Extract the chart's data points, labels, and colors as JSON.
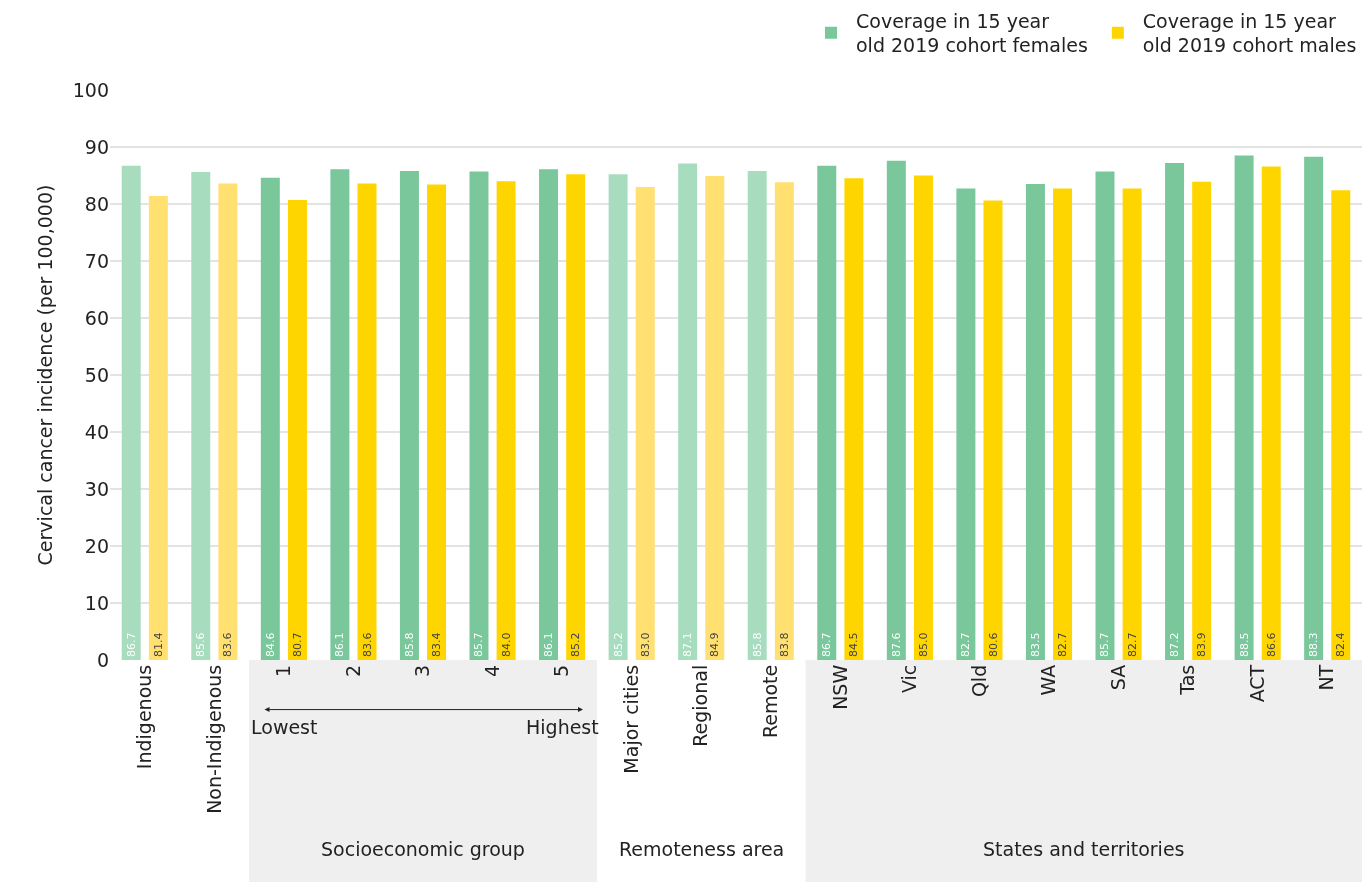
{
  "chart_data": {
    "type": "bar",
    "ylabel": "Cervical cancer incidence (per 100,000)",
    "categories": [
      "Indigenous",
      "Non-Indigenous",
      "1",
      "2",
      "3",
      "4",
      "5",
      "Major cities",
      "Regional",
      "Remote",
      "NSW",
      "Vic",
      "Qld",
      "WA",
      "SA",
      "Tas",
      "ACT",
      "NT"
    ],
    "series": [
      {
        "name": "Coverage in 15 year old 2019 cohort females",
        "color": "#7ac79b",
        "colors": [
          "#a8dcbf",
          "#a8dcbf",
          "#7ac79b",
          "#7ac79b",
          "#7ac79b",
          "#7ac79b",
          "#7ac79b",
          "#a8dcbf",
          "#a8dcbf",
          "#a8dcbf",
          "#7ac79b",
          "#7ac79b",
          "#7ac79b",
          "#7ac79b",
          "#7ac79b",
          "#7ac79b",
          "#7ac79b",
          "#7ac79b"
        ],
        "values": [
          86.7,
          85.6,
          84.6,
          86.1,
          85.8,
          85.7,
          86.1,
          85.2,
          87.1,
          85.8,
          86.7,
          87.6,
          82.7,
          83.5,
          85.7,
          87.2,
          88.5,
          88.3
        ]
      },
      {
        "name": "Coverage in 15 year old 2019 cohort males",
        "color": "#ffd500",
        "colors": [
          "#ffe070",
          "#ffe070",
          "#ffd500",
          "#ffd500",
          "#ffd500",
          "#ffd500",
          "#ffd500",
          "#ffe070",
          "#ffe070",
          "#ffe070",
          "#ffd500",
          "#ffd500",
          "#ffd500",
          "#ffd500",
          "#ffd500",
          "#ffd500",
          "#ffd500",
          "#ffd500"
        ],
        "values": [
          81.4,
          83.6,
          80.7,
          83.6,
          83.4,
          84.0,
          85.2,
          83.0,
          84.9,
          83.8,
          84.5,
          85.0,
          80.6,
          82.7,
          82.7,
          83.9,
          86.6,
          82.4
        ],
        "value_labels": [
          "81.4",
          "83.6",
          "80.7",
          "83.6",
          "83.4",
          "84.0",
          "85.2",
          "83.0",
          "84.9",
          "83.8",
          "84.5",
          "85.0",
          "80.6",
          "82.7",
          "82.7",
          "83.9",
          "86.6",
          "82.4"
        ]
      }
    ],
    "ylim": [
      0,
      100
    ],
    "yticks": [
      0,
      10,
      20,
      30,
      40,
      50,
      60,
      70,
      80,
      90,
      100
    ],
    "grid": "y",
    "legend": "top right",
    "data_labels": true,
    "annotations": [
      "Lowest",
      "Highest",
      "Socioeconomic group",
      "Remoteness area",
      "States and territories"
    ]
  }
}
